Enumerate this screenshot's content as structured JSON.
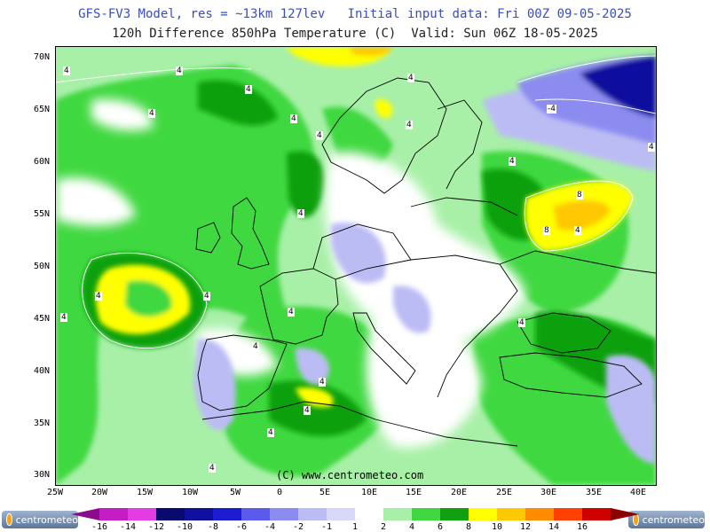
{
  "title_line1": "GFS-FV3 Model, res = ~13km 127lev   Initial input data: Fri 00Z 09-05-2025",
  "title_line2": "120h Difference 850hPa Temperature (C)  Valid: Sun 06Z 18-05-2025",
  "copyright": "(C) www.centrometeo.com",
  "logo_text": "centrometeo",
  "lat_labels": [
    "70N",
    "65N",
    "60N",
    "55N",
    "50N",
    "45N",
    "40N",
    "35N",
    "30N"
  ],
  "lon_labels": [
    "25W",
    "20W",
    "15W",
    "10W",
    "5W",
    "0",
    "5E",
    "10E",
    "15E",
    "20E",
    "25E",
    "30E",
    "35E",
    "40E"
  ],
  "colorbar": {
    "labels": [
      "-16",
      "-14",
      "-12",
      "-10",
      "-8",
      "-6",
      "-4",
      "-2",
      "-1",
      "1",
      "2",
      "4",
      "6",
      "8",
      "10",
      "12",
      "14",
      "16"
    ],
    "colors": [
      "#8c0a8c",
      "#c41dc4",
      "#e23ce2",
      "#0a0a6e",
      "#10109e",
      "#1c1cd0",
      "#5a5aee",
      "#8c8cf0",
      "#bcbcf4",
      "#d8d8fa",
      "#ffffff",
      "#a8f0a8",
      "#40d840",
      "#10a010",
      "#ffff00",
      "#ffc800",
      "#ff8c00",
      "#ff4000",
      "#d00000",
      "#8c0000"
    ]
  },
  "contour_labels": [
    "4",
    "4",
    "4",
    "4",
    "4",
    "4",
    "4",
    "4",
    "-4",
    "4",
    "4",
    "8",
    "8",
    "4",
    "4",
    "4",
    "4",
    "4",
    "4",
    "4",
    "4",
    "4",
    "4",
    "4",
    "4"
  ],
  "colors": {
    "land_border": "#000000",
    "contour": "#ffffff"
  }
}
